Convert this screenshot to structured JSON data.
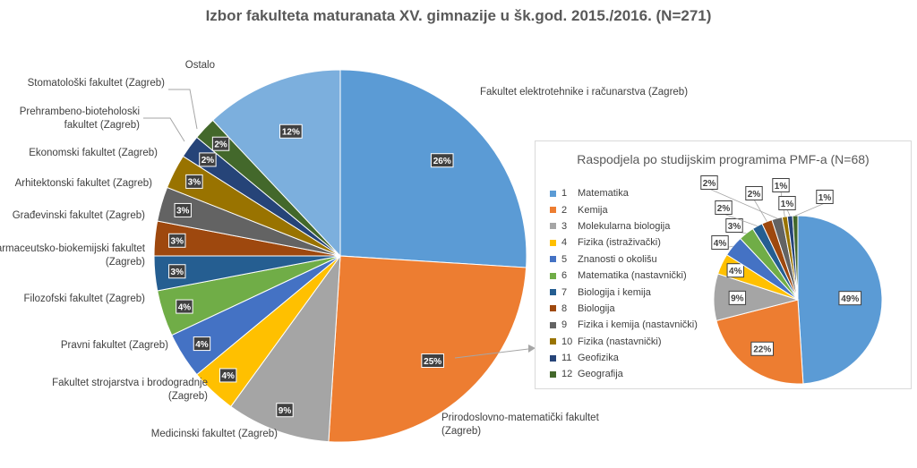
{
  "chart_data": [
    {
      "type": "pie",
      "title": "Izbor fakulteta maturanata XV. gimnazije u šk.god. 2015./2016. (N=271)",
      "slices": [
        {
          "label": "Fakultet elektrotehnike i računarstva (Zagreb)",
          "value": 26,
          "value_label": "26%",
          "color": "#5b9bd5"
        },
        {
          "label": "Prirodoslovno-matematički fakultet (Zagreb)",
          "value": 25,
          "value_label": "25%",
          "color": "#ed7d31"
        },
        {
          "label": "Medicinski fakultet (Zagreb)",
          "value": 9,
          "value_label": "9%",
          "color": "#a5a5a5"
        },
        {
          "label": "Fakultet strojarstva i brodogradnje (Zagreb)",
          "value": 4,
          "value_label": "4%",
          "color": "#ffc000"
        },
        {
          "label": "Pravni fakultet (Zagreb)",
          "value": 4,
          "value_label": "4%",
          "color": "#4472c4"
        },
        {
          "label": "Filozofski fakultet (Zagreb)",
          "value": 4,
          "value_label": "4%",
          "color": "#70ad47"
        },
        {
          "label": "Farmaceutsko-biokemijski fakultet (Zagreb)",
          "value": 3,
          "value_label": "3%",
          "color": "#255e91"
        },
        {
          "label": "Građevinski fakultet (Zagreb)",
          "value": 3,
          "value_label": "3%",
          "color": "#9e480e"
        },
        {
          "label": "Arhitektonski fakultet (Zagreb)",
          "value": 3,
          "value_label": "3%",
          "color": "#636363"
        },
        {
          "label": "Ekonomski fakultet (Zagreb)",
          "value": 3,
          "value_label": "3%",
          "color": "#997300"
        },
        {
          "label": "Prehrambeno-bioteholoski fakultet (Zagreb)",
          "value": 2,
          "value_label": "2%",
          "color": "#264478"
        },
        {
          "label": "Stomatološki fakultet (Zagreb)",
          "value": 2,
          "value_label": "2%",
          "color": "#43682b"
        },
        {
          "label": "Ostalo",
          "value": 12,
          "value_label": "12%",
          "color": "#7cafdd"
        }
      ]
    },
    {
      "type": "pie",
      "title": "Raspodjela po studijskim programima PMF-a (N=68)",
      "legend_placement": "left",
      "slices": [
        {
          "num": "1",
          "label": "Matematika",
          "value": 49,
          "value_label": "49%",
          "color": "#5b9bd5"
        },
        {
          "num": "2",
          "label": "Kemija",
          "value": 22,
          "value_label": "22%",
          "color": "#ed7d31"
        },
        {
          "num": "3",
          "label": "Molekularna biologija",
          "value": 9,
          "value_label": "9%",
          "color": "#a5a5a5"
        },
        {
          "num": "4",
          "label": "Fizika (istraživački)",
          "value": 4,
          "value_label": "4%",
          "color": "#ffc000"
        },
        {
          "num": "5",
          "label": "Znanosti o okolišu",
          "value": 4,
          "value_label": "4%",
          "color": "#4472c4"
        },
        {
          "num": "6",
          "label": "Matematika (nastavnički)",
          "value": 3,
          "value_label": "3%",
          "color": "#70ad47"
        },
        {
          "num": "7",
          "label": "Biologija i kemija",
          "value": 2,
          "value_label": "2%",
          "color": "#255e91"
        },
        {
          "num": "8",
          "label": "Biologija",
          "value": 2,
          "value_label": "2%",
          "color": "#9e480e"
        },
        {
          "num": "9",
          "label": "Fizika i kemija (nastavnički)",
          "value": 2,
          "value_label": "2%",
          "color": "#636363"
        },
        {
          "num": "10",
          "label": "Fizika (nastavnički)",
          "value": 1,
          "value_label": "1%",
          "color": "#997300"
        },
        {
          "num": "11",
          "label": "Geofizika",
          "value": 1,
          "value_label": "1%",
          "color": "#264478"
        },
        {
          "num": "12",
          "label": "Geografija",
          "value": 1,
          "value_label": "1%",
          "color": "#43682b"
        }
      ]
    }
  ]
}
